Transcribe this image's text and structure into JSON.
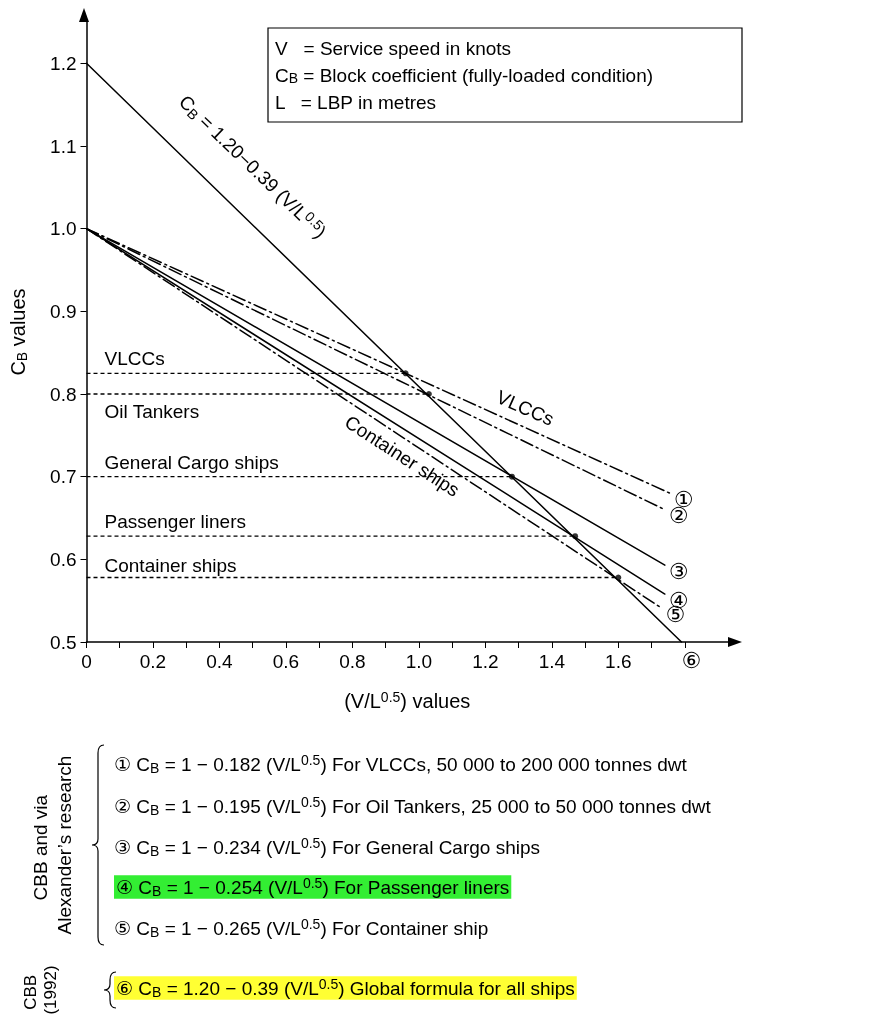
{
  "chart_data": {
    "type": "line",
    "xlabel": "(V/L$^{0.5}$) values",
    "ylabel": "C$_{B}$ values",
    "xlim": [
      0,
      1.93
    ],
    "ylim": [
      0.5,
      1.25
    ],
    "xticks": [
      0,
      {
        "value": 0.1,
        "label": null
      },
      0.2,
      {
        "value": 0.3,
        "label": null
      },
      0.4,
      {
        "value": 0.5,
        "label": null
      },
      0.6,
      {
        "value": 0.7,
        "label": null
      },
      0.8,
      {
        "value": 0.9,
        "label": null
      },
      {
        "value": 1,
        "label": "1.0"
      },
      {
        "value": 1.1,
        "label": null
      },
      1.2,
      {
        "value": 1.3,
        "label": null
      },
      1.4,
      {
        "value": 1.5,
        "label": null
      },
      1.6,
      {
        "value": 1.7,
        "label": null
      },
      {
        "value": 1.8,
        "label": null
      }
    ],
    "yticks": [
      0.5,
      0.6,
      0.7,
      0.8,
      0.9,
      {
        "value": 1,
        "label": "1.0"
      },
      1.1,
      1.2
    ],
    "grid": false,
    "legend": "right",
    "marker": "none",
    "series": [
      {
        "name": "①",
        "color": "#000000",
        "line_style": "dashed",
        "x": [
          0,
          1.755
        ],
        "values": [
          1,
          0.68
        ]
      },
      {
        "name": "②",
        "color": "#000000",
        "line_style": "dashed",
        "x": [
          0,
          1.74
        ],
        "values": [
          1,
          0.66
        ]
      },
      {
        "name": "③",
        "color": "#000000",
        "line_style": "solid",
        "x": [
          0,
          1.74
        ],
        "values": [
          1,
          0.593
        ]
      },
      {
        "name": "④",
        "color": "#000000",
        "line_style": "solid",
        "x": [
          0,
          1.74
        ],
        "values": [
          1,
          0.558
        ]
      },
      {
        "name": "⑤",
        "color": "#000000",
        "line_style": "dashed",
        "x": [
          0,
          1.73
        ],
        "values": [
          1,
          0.541
        ]
      },
      {
        "name": "⑥",
        "color": "#000000",
        "line_style": "solid",
        "x": [
          0,
          1.79
        ],
        "values": [
          1.2,
          0.5
        ]
      },
      {
        "color": "#000000",
        "line_style": "dashed",
        "x": [
          0,
          0.96
        ],
        "values": [
          0.825,
          0.825
        ]
      },
      {
        "color": "#000000",
        "line_style": "dashed",
        "x": [
          0,
          1.03
        ],
        "values": [
          0.8,
          0.8
        ]
      },
      {
        "color": "#000000",
        "line_style": "dashed",
        "x": [
          0,
          1.28
        ],
        "values": [
          0.7,
          0.7
        ]
      },
      {
        "color": "#000000",
        "line_style": "dashed",
        "x": [
          0,
          1.47
        ],
        "values": [
          0.628,
          0.628
        ]
      },
      {
        "color": "#000000",
        "line_style": "dashed",
        "x": [
          0,
          1.6
        ],
        "values": [
          0.578,
          0.578
        ]
      },
      {
        "type": "scatter",
        "marker": "circle",
        "color": "#000000",
        "x": [
          0.96,
          1.03,
          1.28,
          1.47,
          1.6
        ],
        "values": [
          0.825,
          0.8,
          0.7,
          0.628,
          0.578
        ]
      }
    ],
    "annotations": [
      "V   = Service speed in knots",
      "C$_{B}$ = Block coefficient (fully-loaded condition)",
      "L   = LBP in metres",
      "C$_{B}$ = 1.20−0.39 (V/L$^{0.5}$)",
      "VLCCs",
      "Container ships",
      "VLCCs",
      "Oil Tankers",
      "General Cargo ships",
      "Passenger liners",
      "Container ships",
      "① C$_{B}$ = 1 − 0.182 (V/L$^{0.5}$) For VLCCs, 50 000 to 200 000 tonnes dwt",
      "② C$_{B}$ = 1 − 0.195 (V/L$^{0.5}$) For Oil Tankers, 25 000 to 50 000 tonnes dwt",
      "③ C$_{B}$ = 1 − 0.234 (V/L$^{0.5}$) For General Cargo ships",
      "④ C$_{B}$ = 1 − 0.254 (V/L$^{0.5}$) For Passenger liners",
      "⑤ C$_{B}$ = 1 − 0.265 (V/L$^{0.5}$) For Container ship",
      "⑥ C$_{B}$ = 1.20 − 0.39 (V/L$^{0.5}$) Global formula for all ships",
      "CBB and via Alexander’s research",
      "CBB (1992)"
    ]
  }
}
